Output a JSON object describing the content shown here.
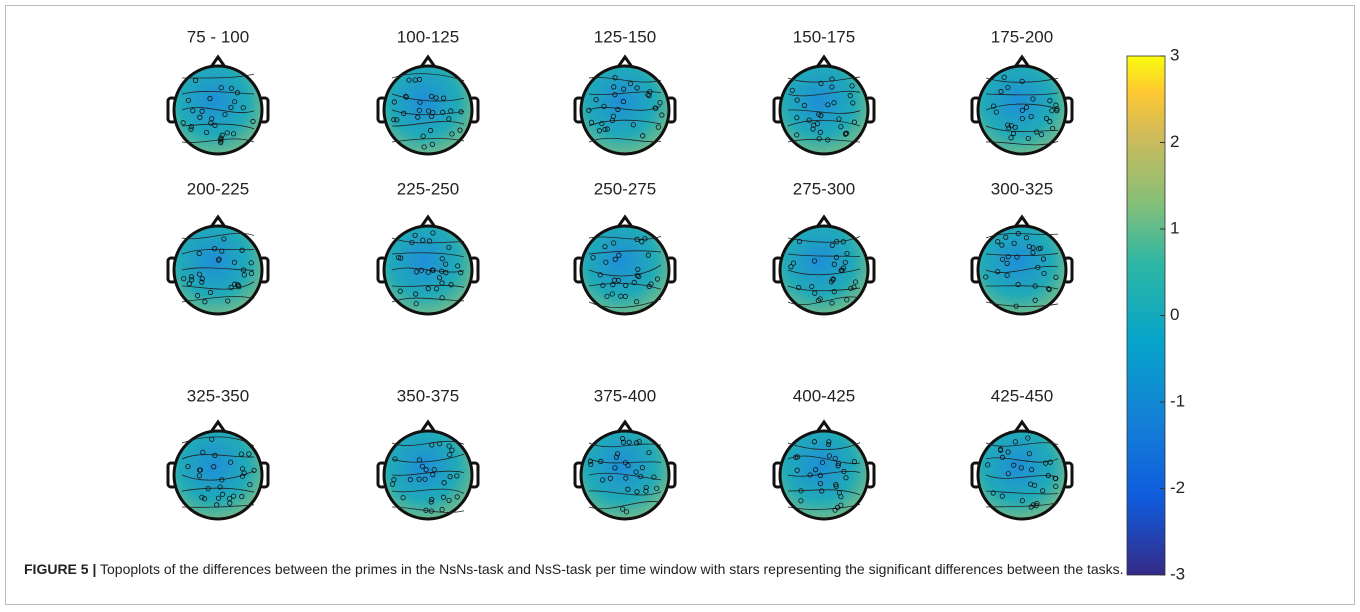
{
  "panels": {
    "titles": [
      "75 - 100",
      "100-125",
      "125-150",
      "150-175",
      "175-200",
      "200-225",
      "225-250",
      "250-275",
      "275-300",
      "300-325",
      "325-350",
      "350-375",
      "375-400",
      "400-425",
      "425-450"
    ]
  },
  "colorbar": {
    "lim": [
      -3,
      3
    ],
    "ticks": [
      3,
      2,
      1,
      0,
      -1,
      -2,
      -3
    ]
  },
  "caption": {
    "label": "FIGURE 5 |",
    "text": "Topoplots of the differences between the primes in the NsNs-task and NsS-task per time window with stars representing the significant differences between the tasks."
  }
}
